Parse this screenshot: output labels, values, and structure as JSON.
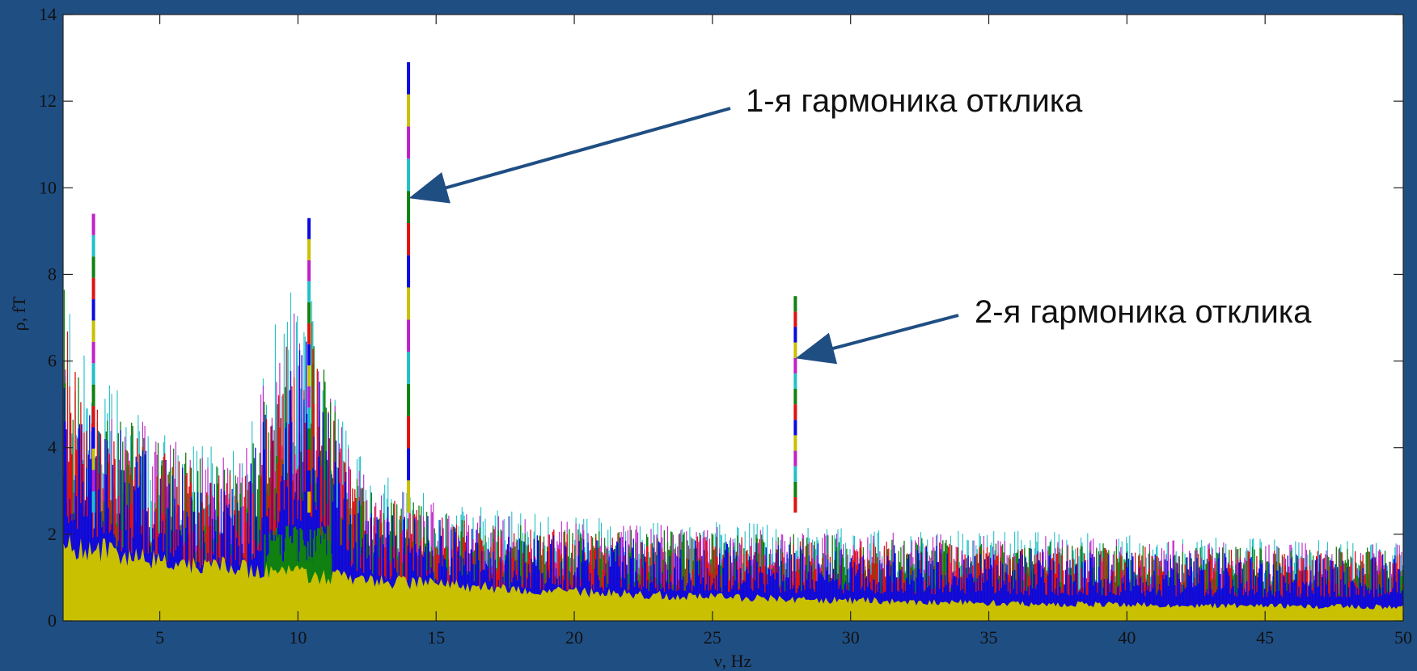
{
  "chart_data": {
    "type": "line",
    "title": "",
    "xlabel": "ν, Hz",
    "ylabel": "ρ, fT",
    "xlim": [
      1.5,
      50
    ],
    "ylim": [
      0,
      14
    ],
    "xticks": [
      5,
      10,
      15,
      20,
      25,
      30,
      35,
      40,
      45,
      50
    ],
    "yticks": [
      0,
      2,
      4,
      6,
      8,
      10,
      12,
      14
    ],
    "grid": false,
    "series_colors": [
      "#c8c000",
      "#0a0ae0",
      "#e01010",
      "#108010",
      "#20c0c8",
      "#c020c8"
    ],
    "background_envelope": {
      "x": [
        1.5,
        2,
        2.5,
        3,
        4,
        5,
        6,
        7,
        8,
        8.5,
        9,
        9.5,
        10,
        10.5,
        11,
        11.5,
        12,
        13,
        14,
        15,
        17,
        20,
        25,
        30,
        35,
        40,
        45,
        50
      ],
      "y": [
        8.7,
        6.5,
        5.8,
        5.7,
        5.2,
        4.6,
        4.3,
        4.0,
        3.9,
        5.0,
        6.6,
        7.3,
        7.9,
        7.9,
        6.3,
        5.0,
        4.1,
        3.4,
        3.1,
        2.9,
        2.6,
        2.4,
        2.3,
        2.2,
        2.1,
        2.0,
        1.9,
        1.9
      ]
    },
    "peaks": [
      {
        "x": 14.0,
        "y": 12.9
      },
      {
        "x": 28.0,
        "y": 7.5
      },
      {
        "x": 2.6,
        "y": 9.4
      },
      {
        "x": 10.4,
        "y": 9.3
      }
    ],
    "annotations": [
      {
        "text": "1-я гармоника отклика",
        "target_x": 14.0,
        "target_y": 9.8
      },
      {
        "text": "2-я гармоника отклика",
        "target_x": 28.0,
        "target_y": 6.1
      }
    ]
  }
}
